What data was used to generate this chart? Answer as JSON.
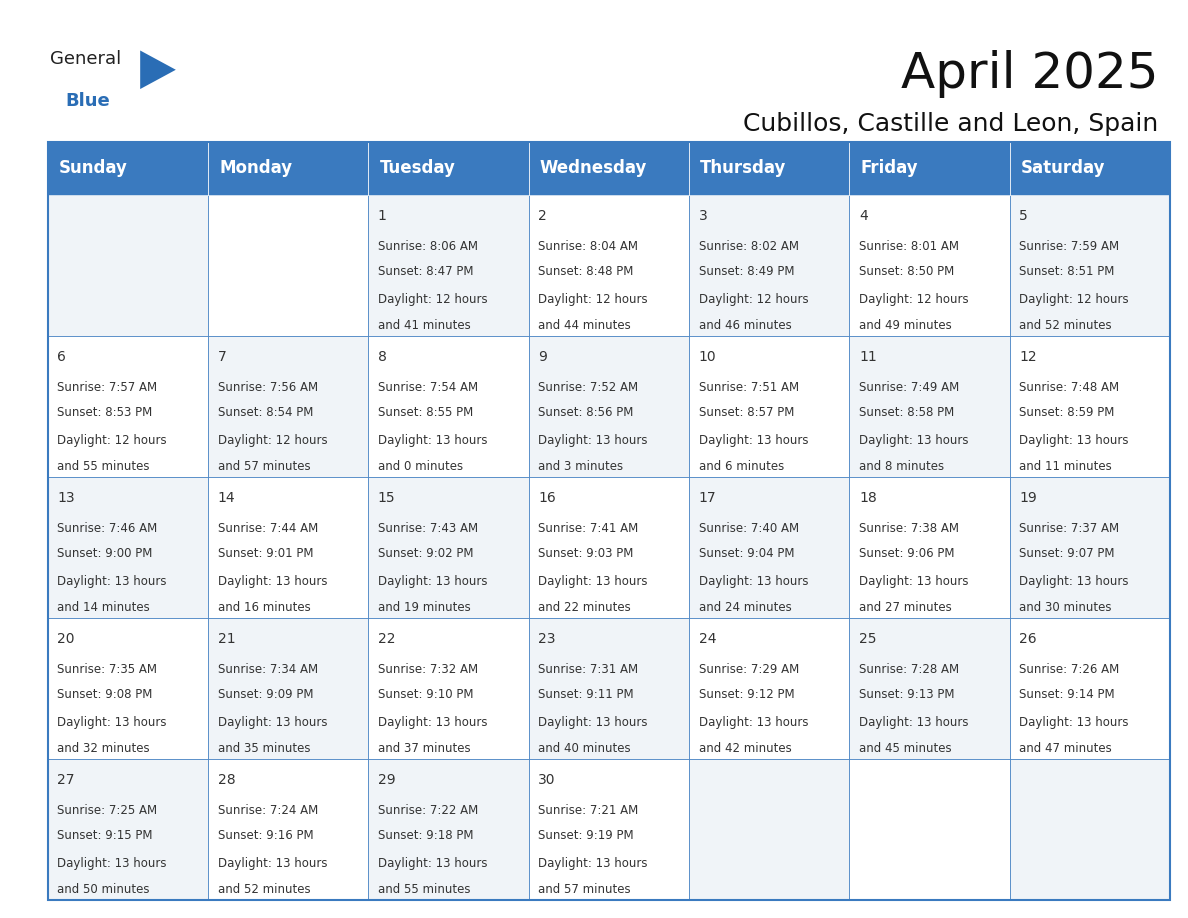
{
  "title": "April 2025",
  "subtitle": "Cubillos, Castille and Leon, Spain",
  "header_color": "#3a7abf",
  "header_text_color": "#ffffff",
  "border_color": "#3a7abf",
  "day_headers": [
    "Sunday",
    "Monday",
    "Tuesday",
    "Wednesday",
    "Thursday",
    "Friday",
    "Saturday"
  ],
  "logo_general_color": "#222222",
  "logo_blue_color": "#2a6db5",
  "title_fontsize": 36,
  "subtitle_fontsize": 18,
  "header_fontsize": 12,
  "cell_fontsize": 8.5,
  "date_fontsize": 10,
  "days": [
    {
      "date": 1,
      "col": 2,
      "row": 0,
      "sunrise": "8:06 AM",
      "sunset": "8:47 PM",
      "daylight": "12 hours and 41 minutes"
    },
    {
      "date": 2,
      "col": 3,
      "row": 0,
      "sunrise": "8:04 AM",
      "sunset": "8:48 PM",
      "daylight": "12 hours and 44 minutes"
    },
    {
      "date": 3,
      "col": 4,
      "row": 0,
      "sunrise": "8:02 AM",
      "sunset": "8:49 PM",
      "daylight": "12 hours and 46 minutes"
    },
    {
      "date": 4,
      "col": 5,
      "row": 0,
      "sunrise": "8:01 AM",
      "sunset": "8:50 PM",
      "daylight": "12 hours and 49 minutes"
    },
    {
      "date": 5,
      "col": 6,
      "row": 0,
      "sunrise": "7:59 AM",
      "sunset": "8:51 PM",
      "daylight": "12 hours and 52 minutes"
    },
    {
      "date": 6,
      "col": 0,
      "row": 1,
      "sunrise": "7:57 AM",
      "sunset": "8:53 PM",
      "daylight": "12 hours and 55 minutes"
    },
    {
      "date": 7,
      "col": 1,
      "row": 1,
      "sunrise": "7:56 AM",
      "sunset": "8:54 PM",
      "daylight": "12 hours and 57 minutes"
    },
    {
      "date": 8,
      "col": 2,
      "row": 1,
      "sunrise": "7:54 AM",
      "sunset": "8:55 PM",
      "daylight": "13 hours and 0 minutes"
    },
    {
      "date": 9,
      "col": 3,
      "row": 1,
      "sunrise": "7:52 AM",
      "sunset": "8:56 PM",
      "daylight": "13 hours and 3 minutes"
    },
    {
      "date": 10,
      "col": 4,
      "row": 1,
      "sunrise": "7:51 AM",
      "sunset": "8:57 PM",
      "daylight": "13 hours and 6 minutes"
    },
    {
      "date": 11,
      "col": 5,
      "row": 1,
      "sunrise": "7:49 AM",
      "sunset": "8:58 PM",
      "daylight": "13 hours and 8 minutes"
    },
    {
      "date": 12,
      "col": 6,
      "row": 1,
      "sunrise": "7:48 AM",
      "sunset": "8:59 PM",
      "daylight": "13 hours and 11 minutes"
    },
    {
      "date": 13,
      "col": 0,
      "row": 2,
      "sunrise": "7:46 AM",
      "sunset": "9:00 PM",
      "daylight": "13 hours and 14 minutes"
    },
    {
      "date": 14,
      "col": 1,
      "row": 2,
      "sunrise": "7:44 AM",
      "sunset": "9:01 PM",
      "daylight": "13 hours and 16 minutes"
    },
    {
      "date": 15,
      "col": 2,
      "row": 2,
      "sunrise": "7:43 AM",
      "sunset": "9:02 PM",
      "daylight": "13 hours and 19 minutes"
    },
    {
      "date": 16,
      "col": 3,
      "row": 2,
      "sunrise": "7:41 AM",
      "sunset": "9:03 PM",
      "daylight": "13 hours and 22 minutes"
    },
    {
      "date": 17,
      "col": 4,
      "row": 2,
      "sunrise": "7:40 AM",
      "sunset": "9:04 PM",
      "daylight": "13 hours and 24 minutes"
    },
    {
      "date": 18,
      "col": 5,
      "row": 2,
      "sunrise": "7:38 AM",
      "sunset": "9:06 PM",
      "daylight": "13 hours and 27 minutes"
    },
    {
      "date": 19,
      "col": 6,
      "row": 2,
      "sunrise": "7:37 AM",
      "sunset": "9:07 PM",
      "daylight": "13 hours and 30 minutes"
    },
    {
      "date": 20,
      "col": 0,
      "row": 3,
      "sunrise": "7:35 AM",
      "sunset": "9:08 PM",
      "daylight": "13 hours and 32 minutes"
    },
    {
      "date": 21,
      "col": 1,
      "row": 3,
      "sunrise": "7:34 AM",
      "sunset": "9:09 PM",
      "daylight": "13 hours and 35 minutes"
    },
    {
      "date": 22,
      "col": 2,
      "row": 3,
      "sunrise": "7:32 AM",
      "sunset": "9:10 PM",
      "daylight": "13 hours and 37 minutes"
    },
    {
      "date": 23,
      "col": 3,
      "row": 3,
      "sunrise": "7:31 AM",
      "sunset": "9:11 PM",
      "daylight": "13 hours and 40 minutes"
    },
    {
      "date": 24,
      "col": 4,
      "row": 3,
      "sunrise": "7:29 AM",
      "sunset": "9:12 PM",
      "daylight": "13 hours and 42 minutes"
    },
    {
      "date": 25,
      "col": 5,
      "row": 3,
      "sunrise": "7:28 AM",
      "sunset": "9:13 PM",
      "daylight": "13 hours and 45 minutes"
    },
    {
      "date": 26,
      "col": 6,
      "row": 3,
      "sunrise": "7:26 AM",
      "sunset": "9:14 PM",
      "daylight": "13 hours and 47 minutes"
    },
    {
      "date": 27,
      "col": 0,
      "row": 4,
      "sunrise": "7:25 AM",
      "sunset": "9:15 PM",
      "daylight": "13 hours and 50 minutes"
    },
    {
      "date": 28,
      "col": 1,
      "row": 4,
      "sunrise": "7:24 AM",
      "sunset": "9:16 PM",
      "daylight": "13 hours and 52 minutes"
    },
    {
      "date": 29,
      "col": 2,
      "row": 4,
      "sunrise": "7:22 AM",
      "sunset": "9:18 PM",
      "daylight": "13 hours and 55 minutes"
    },
    {
      "date": 30,
      "col": 3,
      "row": 4,
      "sunrise": "7:21 AM",
      "sunset": "9:19 PM",
      "daylight": "13 hours and 57 minutes"
    }
  ]
}
